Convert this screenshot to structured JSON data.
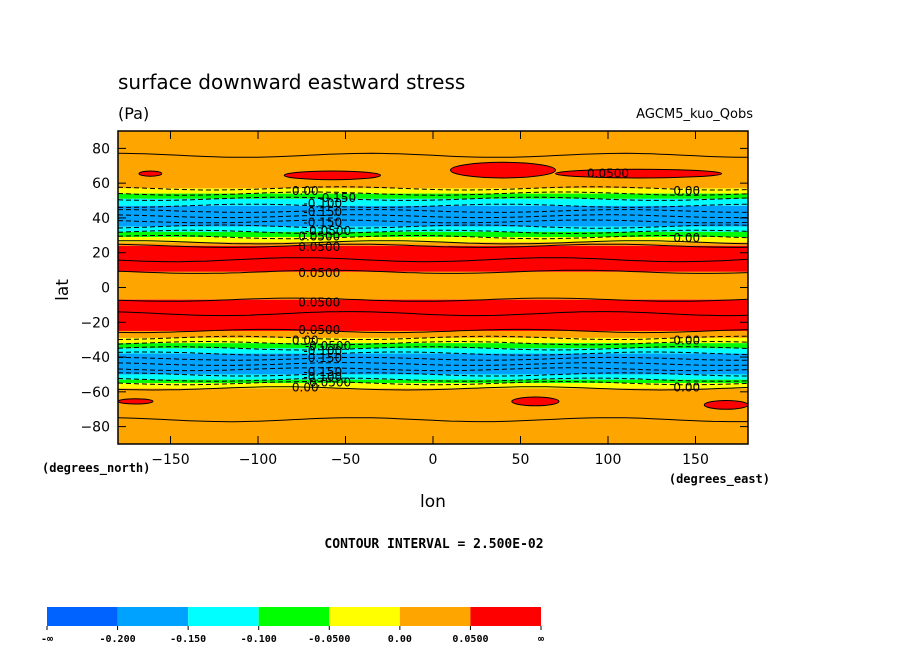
{
  "chart_data": {
    "type": "heatmap",
    "title": "surface downward eastward stress",
    "units": "(Pa)",
    "dataset": "AGCM5_kuo_Qobs",
    "xlabel": "lon",
    "ylabel": "lat",
    "x_units": "(degrees_east)",
    "y_units": "(degrees_north)",
    "xlim": [
      -180,
      180
    ],
    "ylim": [
      -90,
      90
    ],
    "x_ticks": [
      -150,
      -100,
      -50,
      0,
      50,
      100,
      150
    ],
    "y_ticks": [
      80,
      60,
      40,
      20,
      0,
      -20,
      -40,
      -60,
      -80
    ],
    "contour_interval_text": "CONTOUR INTERVAL = 2.500E-02",
    "colorbar": {
      "labels": [
        "-∞",
        "-0.200",
        "-0.150",
        "-0.100",
        "-0.0500",
        "0.00",
        "0.0500",
        "∞"
      ],
      "colors": [
        "#0063ff",
        "#00a2ff",
        "#00ffff",
        "#00ff00",
        "#ffff00",
        "#ffa500",
        "#ff0000"
      ]
    },
    "zonal_bands": [
      {
        "lat_from": 90,
        "lat_to": 57,
        "level": "0.00 to 0.0500"
      },
      {
        "lat_from": 57,
        "lat_to": 54,
        "level": "-0.0500 to 0.00"
      },
      {
        "lat_from": 54,
        "lat_to": 51,
        "level": "-0.100 to -0.0500"
      },
      {
        "lat_from": 51,
        "lat_to": 47,
        "level": "-0.150 to -0.100"
      },
      {
        "lat_from": 47,
        "lat_to": 35,
        "level": "-0.200 to -0.150"
      },
      {
        "lat_from": 35,
        "lat_to": 32,
        "level": "-0.150 to -0.100"
      },
      {
        "lat_from": 32,
        "lat_to": 29,
        "level": "-0.100 to -0.0500"
      },
      {
        "lat_from": 29,
        "lat_to": 26,
        "level": "-0.0500 to 0.00"
      },
      {
        "lat_from": 26,
        "lat_to": 24,
        "level": "0.00 to 0.0500"
      },
      {
        "lat_from": 24,
        "lat_to": 9,
        "level": "0.0500 to ∞"
      },
      {
        "lat_from": 9,
        "lat_to": -7,
        "level": "0.00 to 0.0500"
      },
      {
        "lat_from": -7,
        "lat_to": -25,
        "level": "0.0500 to ∞"
      },
      {
        "lat_from": -25,
        "lat_to": -29,
        "level": "0.00 to 0.0500"
      },
      {
        "lat_from": -29,
        "lat_to": -32,
        "level": "-0.0500 to 0.00"
      },
      {
        "lat_from": -32,
        "lat_to": -35,
        "level": "-0.100 to -0.0500"
      },
      {
        "lat_from": -35,
        "lat_to": -38,
        "level": "-0.150 to -0.100"
      },
      {
        "lat_from": -38,
        "lat_to": -50,
        "level": "-0.200 to -0.150"
      },
      {
        "lat_from": -50,
        "lat_to": -53,
        "level": "-0.150 to -0.100"
      },
      {
        "lat_from": -53,
        "lat_to": -55,
        "level": "-0.100 to -0.0500"
      },
      {
        "lat_from": -55,
        "lat_to": -58,
        "level": "-0.0500 to 0.00"
      },
      {
        "lat_from": -58,
        "lat_to": -90,
        "level": "0.00 to 0.0500"
      }
    ],
    "patches": [
      {
        "lon_from": -168,
        "lon_to": -155,
        "lat_from": 67,
        "lat_to": 64,
        "level": "0.0500 to ∞"
      },
      {
        "lon_from": -85,
        "lon_to": -30,
        "lat_from": 67,
        "lat_to": 62,
        "level": "0.0500 to ∞"
      },
      {
        "lon_from": 10,
        "lon_to": 70,
        "lat_from": 72,
        "lat_to": 63,
        "level": "0.0500 to ∞"
      },
      {
        "lon_from": 70,
        "lon_to": 165,
        "lat_from": 68,
        "lat_to": 63,
        "level": "0.0500 to ∞"
      },
      {
        "lon_from": -180,
        "lon_to": -160,
        "lat_from": -64,
        "lat_to": -67,
        "level": "0.0500 to ∞"
      },
      {
        "lon_from": 45,
        "lon_to": 72,
        "lat_from": -63,
        "lat_to": -68,
        "level": "0.0500 to ∞"
      },
      {
        "lon_from": 155,
        "lon_to": 180,
        "lat_from": -65,
        "lat_to": -70,
        "level": "0.0500 to ∞"
      }
    ],
    "contour_labels": [
      {
        "text": "0.0500",
        "lon": 100,
        "lat": 66
      },
      {
        "text": "0.00",
        "lon": -73,
        "lat": 56
      },
      {
        "text": "-0.150",
        "lon": -55,
        "lat": 52
      },
      {
        "text": "-0.100",
        "lon": -63,
        "lat": 49
      },
      {
        "text": "-0.150",
        "lon": -63,
        "lat": 44
      },
      {
        "text": "-0.150",
        "lon": -63,
        "lat": 38
      },
      {
        "text": "-0.0500",
        "lon": -60,
        "lat": 33
      },
      {
        "text": "0.0500",
        "lon": -65,
        "lat": 30
      },
      {
        "text": "0.00",
        "lon": 145,
        "lat": 56
      },
      {
        "text": "0.00",
        "lon": 145,
        "lat": 29
      },
      {
        "text": "0.0500",
        "lon": -65,
        "lat": 24
      },
      {
        "text": "0.0500",
        "lon": -65,
        "lat": 9
      },
      {
        "text": "0.0500",
        "lon": -65,
        "lat": -8
      },
      {
        "text": "0.0500",
        "lon": -65,
        "lat": -24
      },
      {
        "text": "0.00",
        "lon": -73,
        "lat": -30
      },
      {
        "text": "-0.0500",
        "lon": -60,
        "lat": -33
      },
      {
        "text": "-0.100",
        "lon": -63,
        "lat": -36
      },
      {
        "text": "-0.150",
        "lon": -63,
        "lat": -40
      },
      {
        "text": "-0.150",
        "lon": -63,
        "lat": -48
      },
      {
        "text": "-0.100",
        "lon": -63,
        "lat": -51
      },
      {
        "text": "-0.0500",
        "lon": -60,
        "lat": -54
      },
      {
        "text": "0.00",
        "lon": -73,
        "lat": -57
      },
      {
        "text": "0.00",
        "lon": 145,
        "lat": -30
      },
      {
        "text": "0.00",
        "lon": 145,
        "lat": -57
      }
    ]
  }
}
